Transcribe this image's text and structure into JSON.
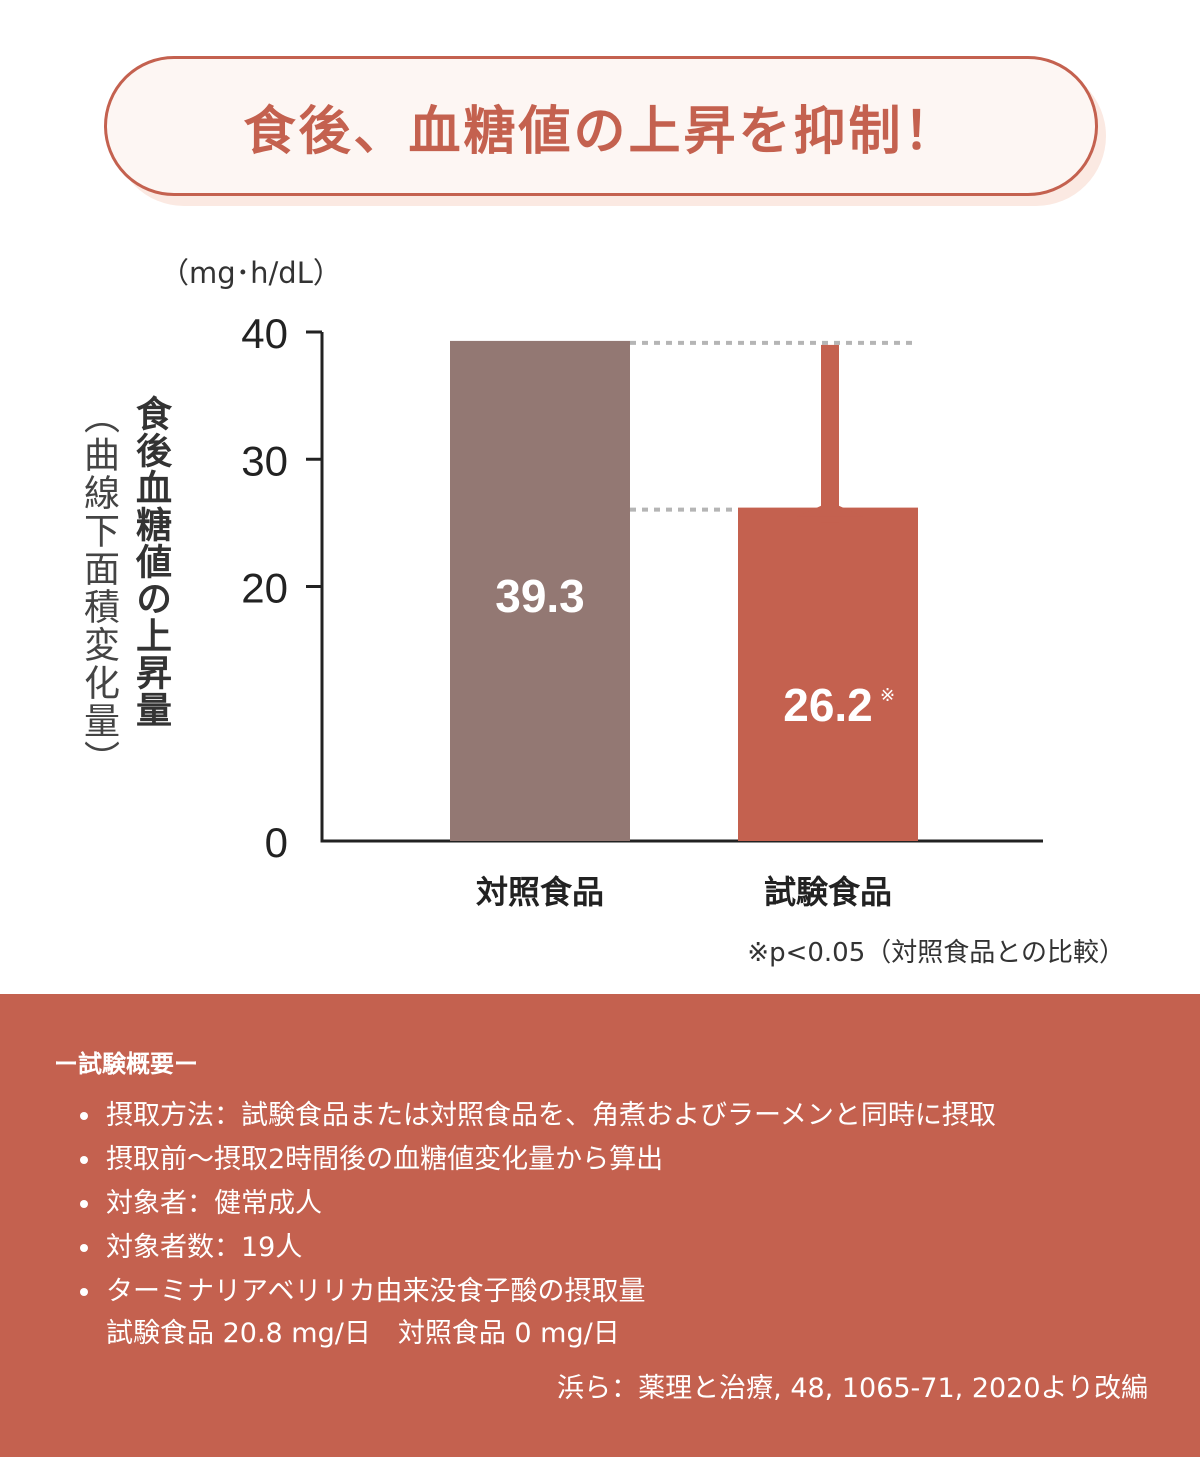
{
  "headline": "食後、血糖値の上昇を抑制！",
  "unit": "（mg･h/dL）",
  "y_title": "食後血糖値の上昇量",
  "y_subtitle": "（曲線下面積変化量）",
  "significance_note": "※p<0.05（対照食品との比較）",
  "chart_data": {
    "type": "bar",
    "categories": [
      "対照食品",
      "試験食品"
    ],
    "values": [
      39.3,
      26.2
    ],
    "value_labels": [
      "39.3",
      "26.2"
    ],
    "value_suffix": [
      "",
      "※"
    ],
    "ylim": [
      0,
      40
    ],
    "yticks": [
      "0",
      "20",
      "30",
      "40"
    ],
    "ytick_values": [
      0,
      20,
      30,
      40
    ],
    "bar_colors": [
      "#937873",
      "#c4614f"
    ],
    "arrow_color": "#c4614f",
    "grid": false
  },
  "summary": {
    "title": "ー試験概要ー",
    "items": [
      "摂取方法：試験食品または対照食品を、角煮およびラーメンと同時に摂取",
      "摂取前～摂取2時間後の血糖値変化量から算出",
      "対象者：健常成人",
      "対象者数：19人",
      "ターミナリアベリリカ由来没食子酸の摂取量"
    ],
    "item5_detail": "試験食品 20.8 mg/日　対照食品 0 mg/日",
    "source": "浜ら：薬理と治療, 48, 1065-71, 2020より改編"
  }
}
